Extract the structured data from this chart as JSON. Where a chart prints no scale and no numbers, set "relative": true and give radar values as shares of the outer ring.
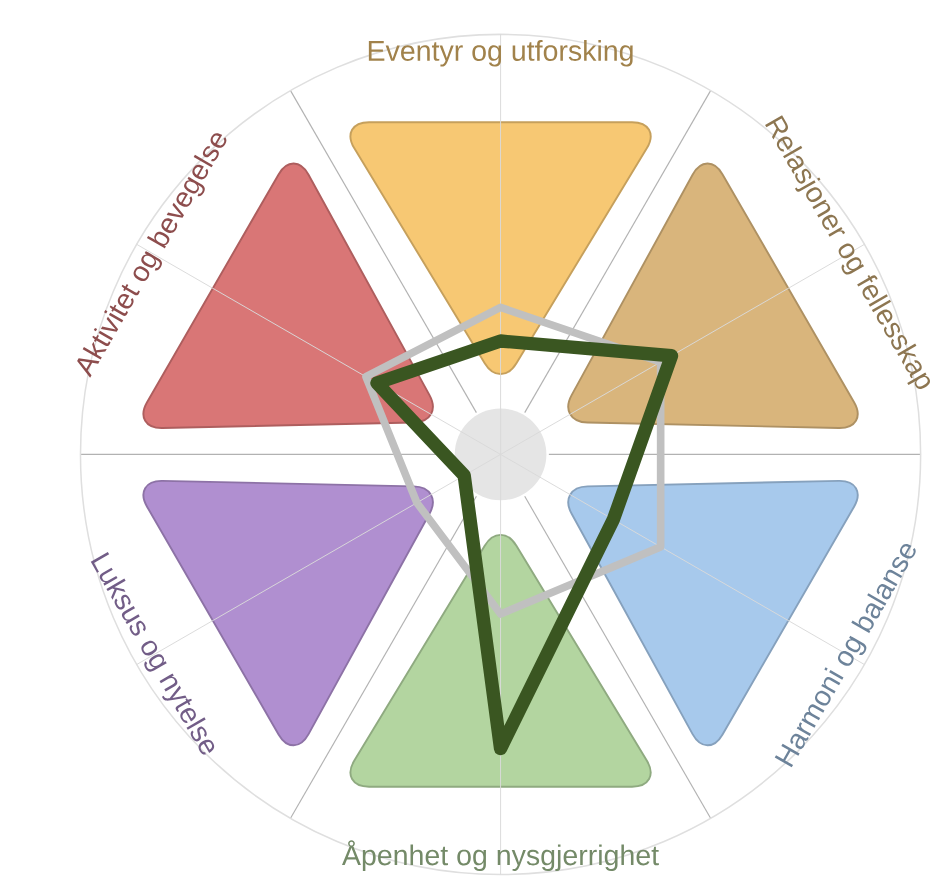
{
  "chart_data": {
    "type": "radar",
    "relative": true,
    "categories": [
      "Eventyr  og utforsking",
      "Relasjoner og fellesskap",
      "Harmoni og balanse",
      "Åpenhet og nysgjerrighet",
      "Luksus og nytelse",
      "Aktivitet og bevegelse"
    ],
    "colors": [
      "#f7c873",
      "#d9b57c",
      "#a7c9ec",
      "#b3d5a0",
      "#b08fd0",
      "#d97676"
    ],
    "series": [
      {
        "color": "#c0c0c0",
        "values": [
          0.35,
          0.44,
          0.44,
          0.38,
          0.23,
          0.37
        ]
      },
      {
        "color": "#3a5621",
        "values": [
          0.27,
          0.47,
          0.31,
          0.7,
          0.1,
          0.34
        ]
      }
    ]
  }
}
